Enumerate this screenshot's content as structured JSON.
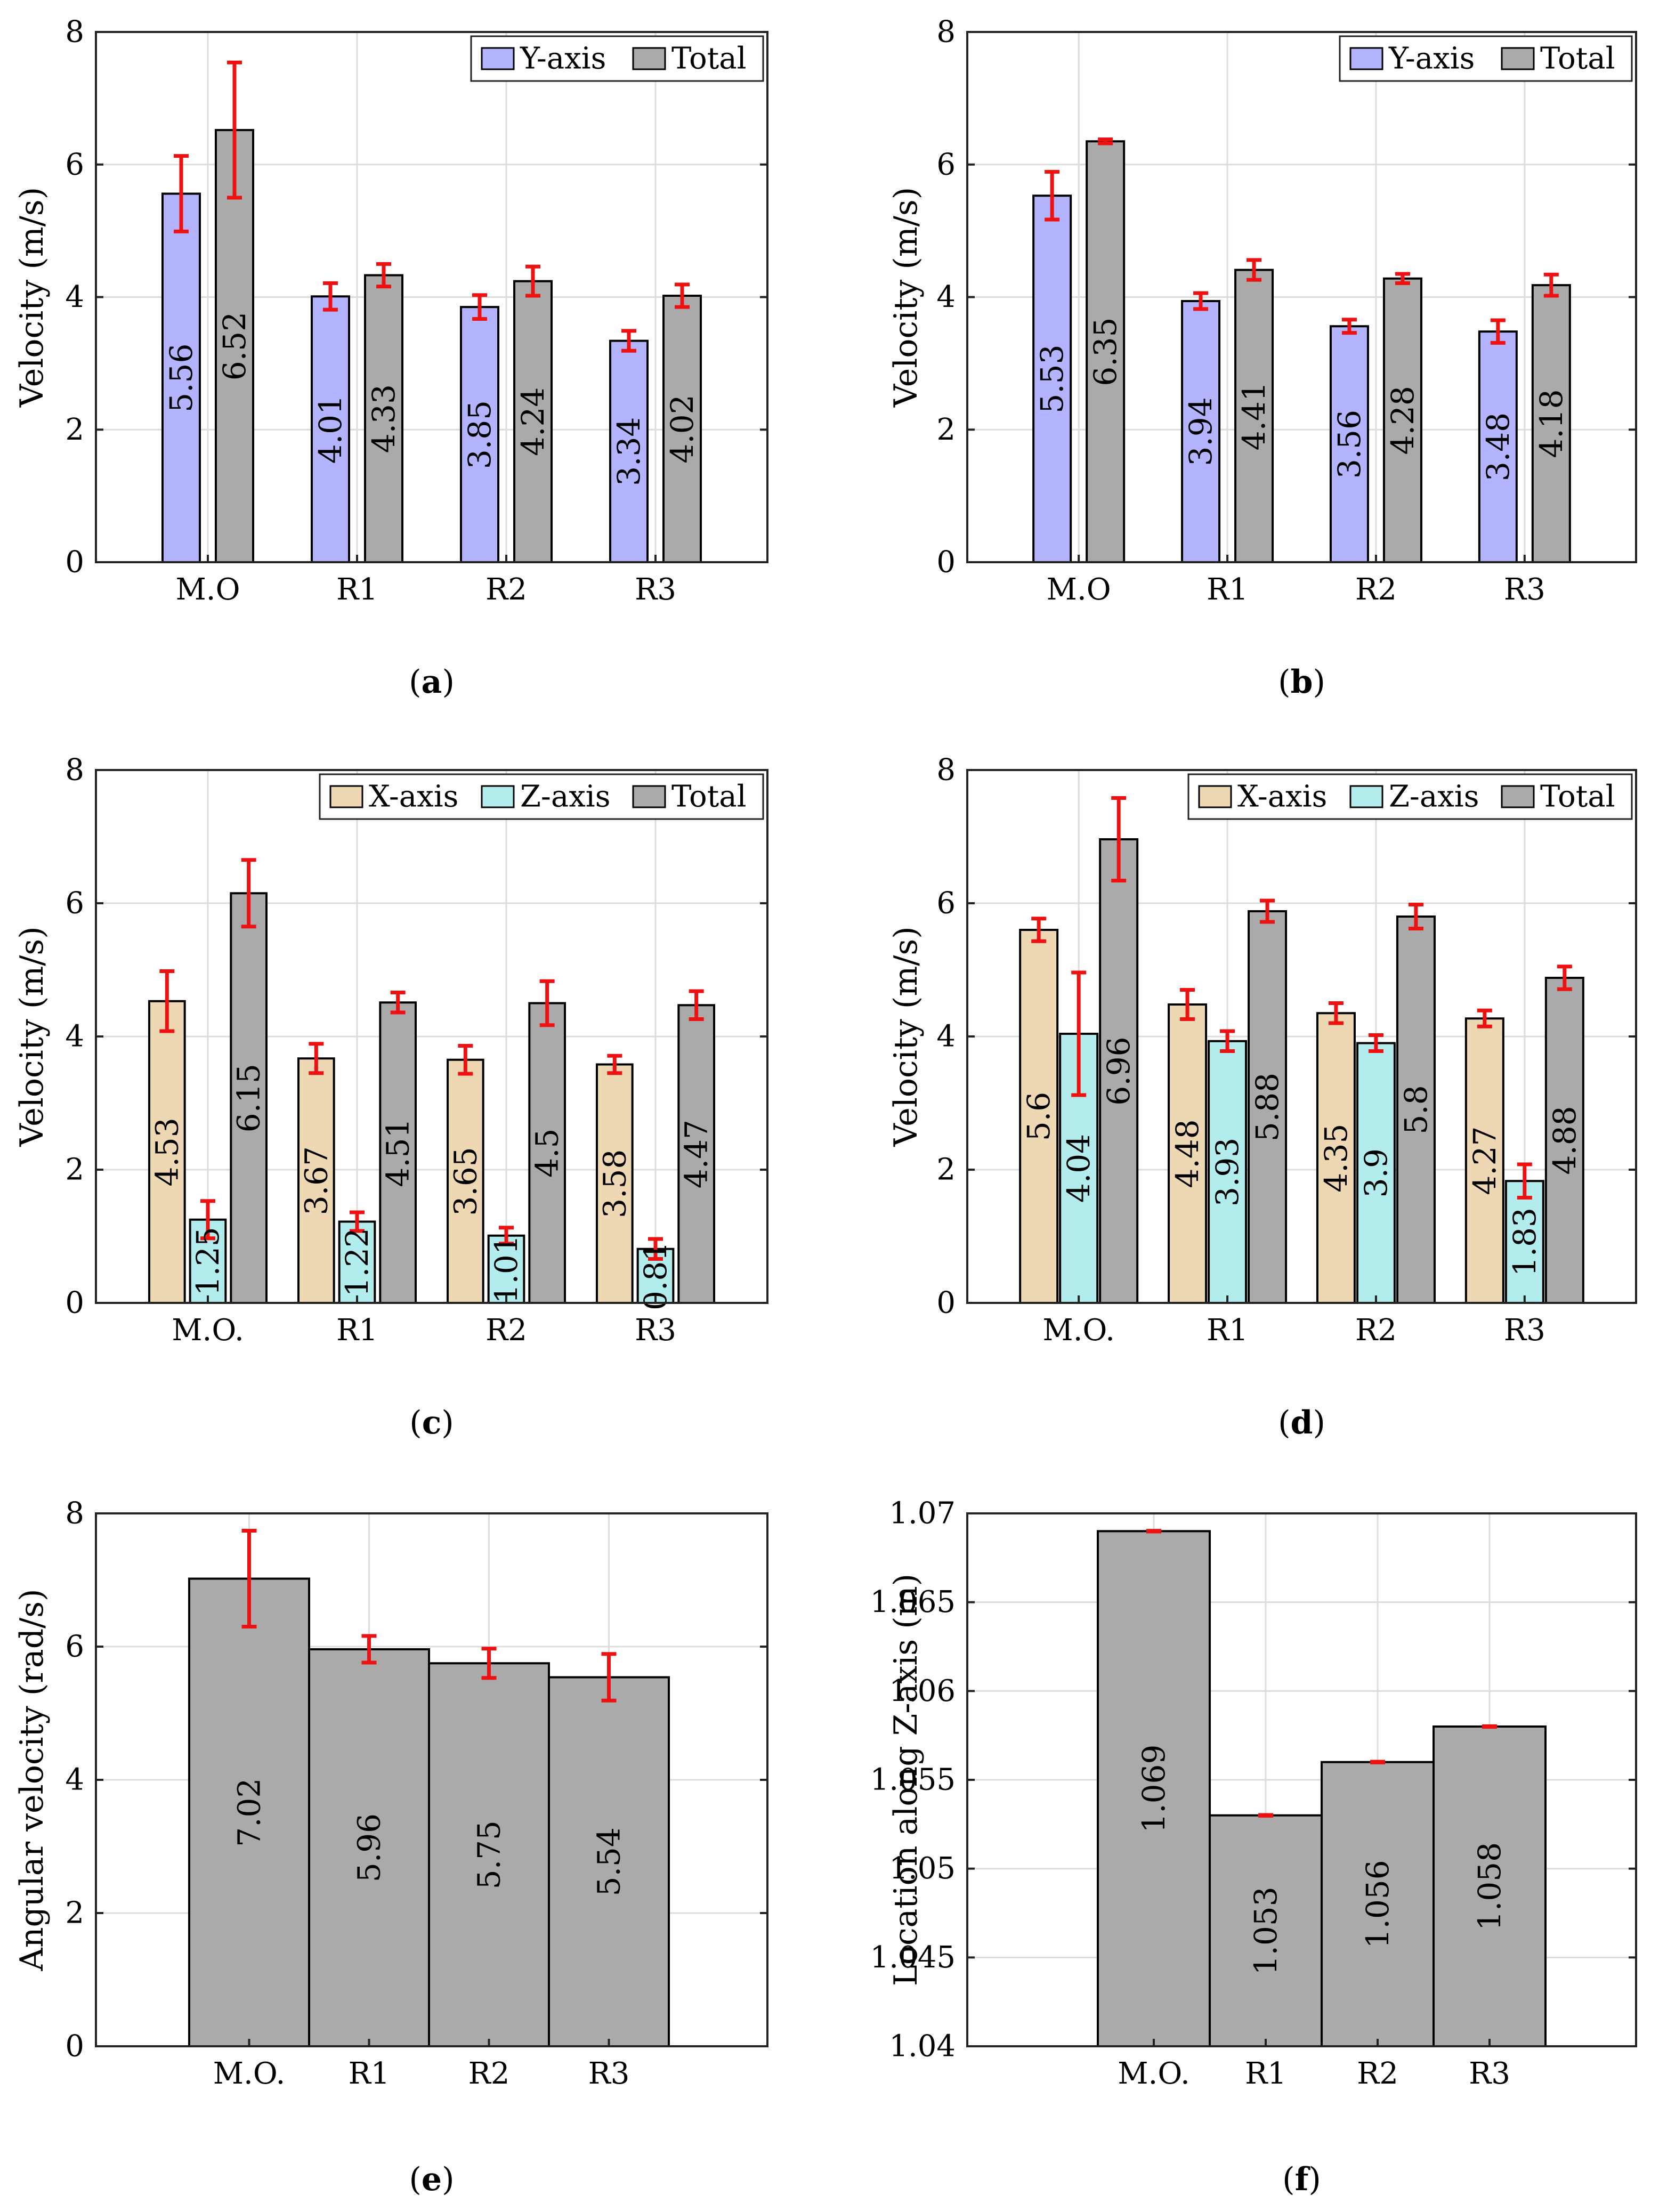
{
  "colors": {
    "y_axis": "#b3b3fe",
    "total": "#aaaaaa",
    "x_axis": "#eed8b4",
    "z_axis": "#b3ecec",
    "error_bar": "#ee1111",
    "grid": "#dcdcdc"
  },
  "chart_data": [
    {
      "caption_label": "a",
      "type": "bar",
      "ylabel": "Velocity (m/s)",
      "xlabel": "",
      "ylim": [
        0,
        8
      ],
      "yticks": [
        "0",
        "2",
        "4",
        "6",
        "8"
      ],
      "categories": [
        "M.O",
        "R1",
        "R2",
        "R3"
      ],
      "legend": "top-right",
      "grid": true,
      "series": [
        {
          "name": "Y-axis",
          "color_key": "y_axis",
          "values": [
            5.56,
            4.01,
            3.85,
            3.34
          ],
          "labels": [
            "5.56",
            "4.01",
            "3.85",
            "3.34"
          ],
          "errors": [
            0.57,
            0.2,
            0.18,
            0.15
          ]
        },
        {
          "name": "Total",
          "color_key": "total",
          "values": [
            6.52,
            4.33,
            4.24,
            4.02
          ],
          "labels": [
            "6.52",
            "4.33",
            "4.24",
            "4.02"
          ],
          "errors": [
            1.02,
            0.17,
            0.22,
            0.17
          ]
        }
      ]
    },
    {
      "caption_label": "b",
      "type": "bar",
      "ylabel": "Velocity (m/s)",
      "xlabel": "",
      "ylim": [
        0,
        8
      ],
      "yticks": [
        "0",
        "2",
        "4",
        "6",
        "8"
      ],
      "categories": [
        "M.O",
        "R1",
        "R2",
        "R3"
      ],
      "legend": "top-right",
      "grid": true,
      "series": [
        {
          "name": "Y-axis",
          "color_key": "y_axis",
          "values": [
            5.53,
            3.94,
            3.56,
            3.48
          ],
          "labels": [
            "5.53",
            "3.94",
            "3.56",
            "3.48"
          ],
          "errors": [
            0.36,
            0.12,
            0.1,
            0.17
          ]
        },
        {
          "name": "Total",
          "color_key": "total",
          "values": [
            6.35,
            4.41,
            4.28,
            4.18
          ],
          "labels": [
            "6.35",
            "4.41",
            "4.28",
            "4.18"
          ],
          "errors": [
            0.03,
            0.15,
            0.07,
            0.16
          ]
        }
      ]
    },
    {
      "caption_label": "c",
      "type": "bar",
      "ylabel": "Velocity (m/s)",
      "xlabel": "",
      "ylim": [
        0,
        8
      ],
      "yticks": [
        "0",
        "2",
        "4",
        "6",
        "8"
      ],
      "categories": [
        "M.O.",
        "R1",
        "R2",
        "R3"
      ],
      "legend": "top-right",
      "grid": true,
      "series": [
        {
          "name": "X-axis",
          "color_key": "x_axis",
          "values": [
            4.53,
            3.67,
            3.65,
            3.58
          ],
          "labels": [
            "4.53",
            "3.67",
            "3.65",
            "3.58"
          ],
          "errors": [
            0.45,
            0.22,
            0.21,
            0.13
          ]
        },
        {
          "name": "Z-axis",
          "color_key": "z_axis",
          "values": [
            1.25,
            1.22,
            1.01,
            0.81
          ],
          "labels": [
            "1.25",
            "1.22",
            "1.01",
            "0.81"
          ],
          "errors": [
            0.28,
            0.14,
            0.12,
            0.15
          ]
        },
        {
          "name": "Total",
          "color_key": "total",
          "values": [
            6.15,
            4.51,
            4.5,
            4.47
          ],
          "labels": [
            "6.15",
            "4.51",
            "4.5",
            "4.47"
          ],
          "errors": [
            0.5,
            0.15,
            0.33,
            0.21
          ]
        }
      ]
    },
    {
      "caption_label": "d",
      "type": "bar",
      "ylabel": "Velocity (m/s)",
      "xlabel": "",
      "ylim": [
        0,
        8
      ],
      "yticks": [
        "0",
        "2",
        "4",
        "6",
        "8"
      ],
      "categories": [
        "M.O.",
        "R1",
        "R2",
        "R3"
      ],
      "legend": "top-right",
      "grid": true,
      "series": [
        {
          "name": "X-axis",
          "color_key": "x_axis",
          "values": [
            5.6,
            4.48,
            4.35,
            4.27
          ],
          "labels": [
            "5.6",
            "4.48",
            "4.35",
            "4.27"
          ],
          "errors": [
            0.17,
            0.22,
            0.15,
            0.12
          ]
        },
        {
          "name": "Z-axis",
          "color_key": "z_axis",
          "values": [
            4.04,
            3.93,
            3.9,
            1.83
          ],
          "labels": [
            "4.04",
            "3.93",
            "3.9",
            "1.83"
          ],
          "errors": [
            0.92,
            0.15,
            0.12,
            0.25
          ]
        },
        {
          "name": "Total",
          "color_key": "total",
          "values": [
            6.96,
            5.88,
            5.8,
            4.88
          ],
          "labels": [
            "6.96",
            "5.88",
            "5.8",
            "4.88"
          ],
          "errors": [
            0.62,
            0.16,
            0.18,
            0.17
          ]
        }
      ]
    },
    {
      "caption_label": "e",
      "type": "bar",
      "ylabel": "Angular velocity (rad/s)",
      "xlabel": "",
      "ylim": [
        0,
        8
      ],
      "yticks": [
        "0",
        "2",
        "4",
        "6",
        "8"
      ],
      "categories": [
        "M.O.",
        "R1",
        "R2",
        "R3"
      ],
      "legend": "none",
      "grid": true,
      "series": [
        {
          "name": "Angular velocity",
          "color_key": "total",
          "values": [
            7.02,
            5.96,
            5.75,
            5.54
          ],
          "labels": [
            "7.02",
            "5.96",
            "5.75",
            "5.54"
          ],
          "errors": [
            0.72,
            0.2,
            0.22,
            0.35
          ]
        }
      ]
    },
    {
      "caption_label": "f",
      "type": "bar",
      "ylabel": "Location along Z-axis (m)",
      "xlabel": "",
      "ylim": [
        1.04,
        1.07
      ],
      "yticks": [
        "1.04",
        "1.045",
        "1.05",
        "1.055",
        "1.06",
        "1.065",
        "1.07"
      ],
      "categories": [
        "M.O.",
        "R1",
        "R2",
        "R3"
      ],
      "legend": "none",
      "grid": true,
      "series": [
        {
          "name": "Location",
          "color_key": "total",
          "values": [
            1.069,
            1.053,
            1.056,
            1.058
          ],
          "labels": [
            "1.069",
            "1.053",
            "1.056",
            "1.058"
          ],
          "errors": [
            2e-05,
            2e-05,
            2e-05,
            2e-05
          ]
        }
      ]
    }
  ]
}
